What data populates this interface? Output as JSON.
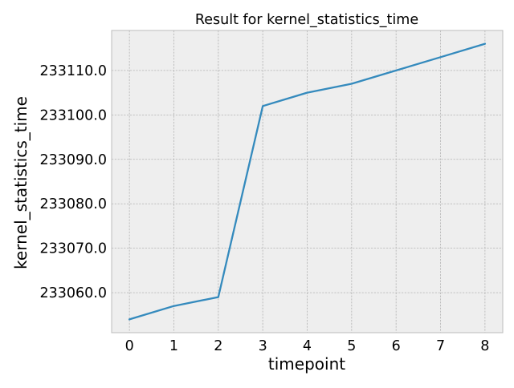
{
  "chart_data": {
    "type": "line",
    "title": "Result for kernel_statistics_time",
    "xlabel": "timepoint",
    "ylabel": "kernel_statistics_time",
    "x": [
      0,
      1,
      2,
      3,
      4,
      5,
      6,
      7,
      8
    ],
    "xticks": [
      "0",
      "1",
      "2",
      "3",
      "4",
      "5",
      "6",
      "7",
      "8"
    ],
    "yticks": [
      233060,
      233070,
      233080,
      233090,
      233100,
      233110
    ],
    "ytick_labels": [
      "233060.0",
      "233070.0",
      "233080.0",
      "233090.0",
      "233100.0",
      "233110.0"
    ],
    "xlim": [
      -0.4,
      8.4
    ],
    "ylim": [
      233051,
      233119
    ],
    "series": [
      {
        "values": [
          233054,
          233057,
          233059,
          233102,
          233105,
          233107,
          233110,
          233113,
          233116
        ],
        "color": "#348abd"
      }
    ],
    "grid": true,
    "legend": "none"
  }
}
